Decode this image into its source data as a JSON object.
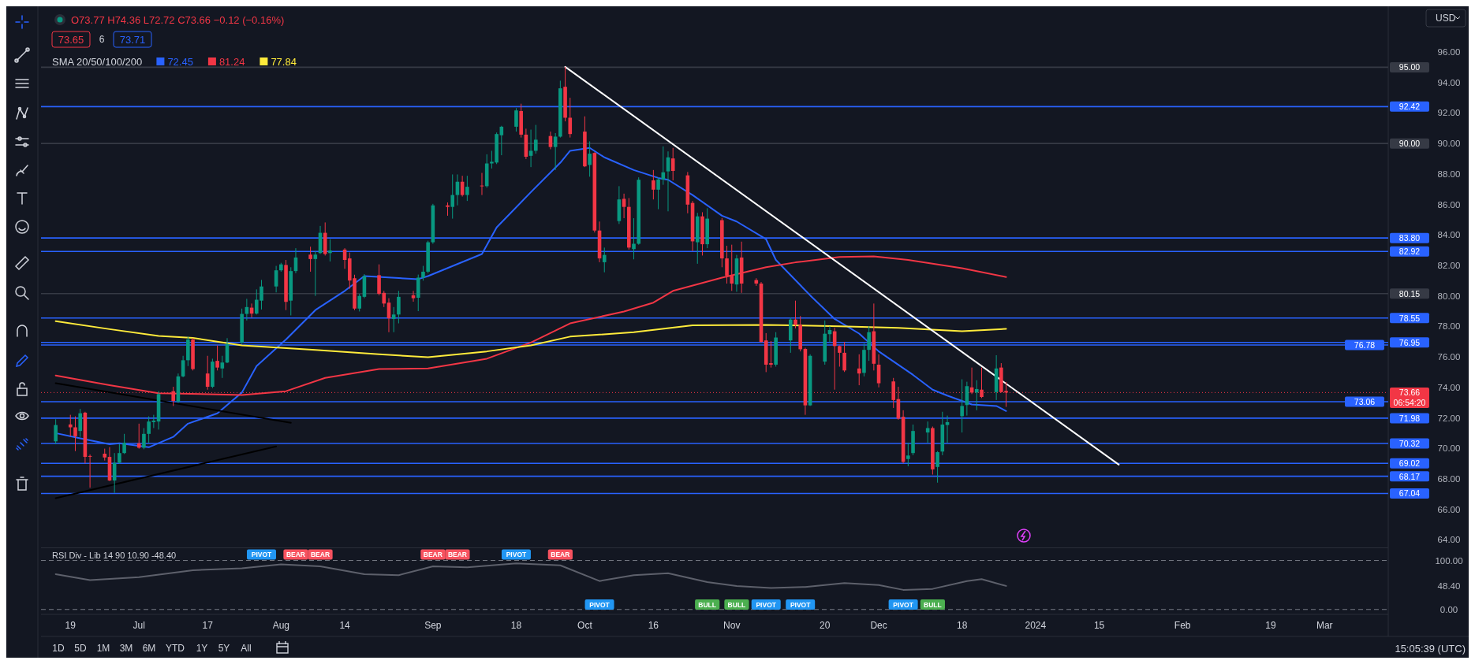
{
  "chart_data": [
    {
      "type": "candlestick",
      "tick_labels": "y",
      "legend": "top left",
      "legend_title": "SMA 20/50/100/200",
      "xlim": [
        "2023-06-13",
        "2024-03-14"
      ],
      "ylim": [
        63.5,
        99
      ],
      "yticks": [
        {
          "value": 64,
          "label": "64.00"
        },
        {
          "value": 66,
          "label": "66.00"
        },
        {
          "value": 68,
          "label": "68.00"
        },
        {
          "value": 70,
          "label": "70.00"
        },
        {
          "value": 72,
          "label": "72.00"
        },
        {
          "value": 74,
          "label": "74.00"
        },
        {
          "value": 76,
          "label": "76.00"
        },
        {
          "value": 78,
          "label": "78.00"
        },
        {
          "value": 80,
          "label": "80.00"
        },
        {
          "value": 82,
          "label": "82.00"
        },
        {
          "value": 84,
          "label": "84.00"
        },
        {
          "value": 86,
          "label": "86.00"
        },
        {
          "value": 88,
          "label": "88.00"
        },
        {
          "value": 90,
          "label": "90.00"
        },
        {
          "value": 92,
          "label": "92.00"
        },
        {
          "value": 94,
          "label": "94.00"
        },
        {
          "value": 96,
          "label": "96.00"
        }
      ],
      "x": [
        "2023-06-16",
        "2023-06-19",
        "2023-06-20",
        "2023-06-21",
        "2023-06-22",
        "2023-06-23",
        "2023-06-26",
        "2023-06-27",
        "2023-06-28",
        "2023-06-29",
        "2023-06-30",
        "2023-07-03",
        "2023-07-04",
        "2023-07-05",
        "2023-07-06",
        "2023-07-07",
        "2023-07-10",
        "2023-07-11",
        "2023-07-12",
        "2023-07-13",
        "2023-07-14",
        "2023-07-17",
        "2023-07-18",
        "2023-07-19",
        "2023-07-20",
        "2023-07-21",
        "2023-07-24",
        "2023-07-25",
        "2023-07-26",
        "2023-07-27",
        "2023-07-28",
        "2023-07-31",
        "2023-08-01",
        "2023-08-02",
        "2023-08-03",
        "2023-08-04",
        "2023-08-07",
        "2023-08-08",
        "2023-08-09",
        "2023-08-10",
        "2023-08-11",
        "2023-08-14",
        "2023-08-15",
        "2023-08-16",
        "2023-08-17",
        "2023-08-18",
        "2023-08-21",
        "2023-08-22",
        "2023-08-23",
        "2023-08-24",
        "2023-08-25",
        "2023-08-28",
        "2023-08-29",
        "2023-08-30",
        "2023-08-31",
        "2023-09-01",
        "2023-09-04",
        "2023-09-05",
        "2023-09-06",
        "2023-09-07",
        "2023-09-08",
        "2023-09-11",
        "2023-09-12",
        "2023-09-13",
        "2023-09-14",
        "2023-09-15",
        "2023-09-18",
        "2023-09-19",
        "2023-09-20",
        "2023-09-21",
        "2023-09-22",
        "2023-09-25",
        "2023-09-26",
        "2023-09-27",
        "2023-09-28",
        "2023-09-29",
        "2023-10-02",
        "2023-10-03",
        "2023-10-04",
        "2023-10-05",
        "2023-10-06",
        "2023-10-09",
        "2023-10-10",
        "2023-10-11",
        "2023-10-12",
        "2023-10-13",
        "2023-10-16",
        "2023-10-17",
        "2023-10-18",
        "2023-10-19",
        "2023-10-20",
        "2023-10-23",
        "2023-10-24",
        "2023-10-25",
        "2023-10-26",
        "2023-10-27",
        "2023-10-30",
        "2023-10-31",
        "2023-11-01",
        "2023-11-02",
        "2023-11-03",
        "2023-11-06",
        "2023-11-07",
        "2023-11-08",
        "2023-11-09",
        "2023-11-10",
        "2023-11-13",
        "2023-11-14",
        "2023-11-15",
        "2023-11-16",
        "2023-11-17",
        "2023-11-20",
        "2023-11-21",
        "2023-11-22",
        "2023-11-23",
        "2023-11-24",
        "2023-11-27",
        "2023-11-28",
        "2023-11-29",
        "2023-11-30",
        "2023-12-01",
        "2023-12-04",
        "2023-12-05",
        "2023-12-06",
        "2023-12-07",
        "2023-12-08",
        "2023-12-11",
        "2023-12-12",
        "2023-12-13",
        "2023-12-14",
        "2023-12-15",
        "2023-12-18",
        "2023-12-19",
        "2023-12-20",
        "2023-12-21",
        "2023-12-22",
        "2023-12-25",
        "2023-12-26",
        "2023-12-27"
      ],
      "ohlc": [
        [
          70.46,
          71.91,
          70.27,
          71.53
        ],
        [
          71.57,
          72.2,
          70.79,
          71.38
        ],
        [
          71.38,
          72.1,
          69.82,
          70.79
        ],
        [
          71.14,
          72.59,
          70.75,
          72.3
        ],
        [
          72.34,
          72.4,
          69.01,
          69.44
        ],
        [
          69.5,
          69.6,
          67.42,
          69.48
        ],
        [
          69.65,
          69.98,
          69.2,
          69.4
        ],
        [
          69.44,
          70.08,
          67.85,
          67.89
        ],
        [
          67.89,
          69.69,
          67.08,
          69.05
        ],
        [
          69.05,
          70.27,
          69.0,
          69.69
        ],
        [
          69.69,
          70.95,
          69.63,
          70.37
        ],
        [
          70.33,
          71.62,
          69.98,
          70.04
        ],
        [
          70.04,
          71.33,
          69.94,
          70.95
        ],
        [
          70.95,
          72.1,
          70.37,
          71.76
        ],
        [
          71.72,
          72.2,
          71.33,
          71.82
        ],
        [
          71.76,
          73.75,
          71.23,
          73.56
        ],
        [
          73.75,
          74.04,
          72.78,
          73.11
        ],
        [
          73.07,
          74.91,
          72.98,
          74.72
        ],
        [
          74.72,
          76.07,
          74.66,
          75.78
        ],
        [
          75.78,
          77.33,
          75.4,
          77.14
        ],
        [
          77.14,
          77.23,
          75.11,
          75.2
        ],
        [
          74.91,
          76.07,
          73.85,
          74.04
        ],
        [
          74.04,
          75.88,
          73.95,
          75.69
        ],
        [
          75.74,
          76.75,
          75.11,
          75.3
        ],
        [
          75.24,
          76.07,
          74.62,
          75.63
        ],
        [
          75.63,
          77.23,
          75.59,
          76.85
        ],
        [
          76.94,
          79.17,
          76.85,
          78.82
        ],
        [
          78.82,
          79.81,
          78.39,
          79.27
        ],
        [
          79.23,
          79.5,
          78.59,
          78.84
        ],
        [
          78.84,
          80.43,
          78.78,
          79.75
        ],
        [
          79.69,
          81.05,
          79.11,
          80.62
        ],
        [
          80.62,
          81.97,
          80.23,
          81.68
        ],
        [
          81.68,
          82.17,
          81.59,
          82.07
        ],
        [
          82.03,
          82.36,
          79.07,
          79.61
        ],
        [
          79.69,
          81.88,
          78.72,
          81.63
        ],
        [
          81.63,
          83.13,
          81.49,
          82.52
        ],
        [
          82.71,
          83.23,
          81.59,
          82.42
        ],
        [
          82.42,
          82.94,
          80.0,
          82.71
        ],
        [
          82.81,
          84.59,
          82.75,
          84.14
        ],
        [
          84.14,
          84.82,
          82.65,
          82.75
        ],
        [
          82.81,
          83.72,
          82.26,
          82.98
        ],
        [
          83.04,
          83.13,
          81.78,
          82.36
        ],
        [
          82.46,
          82.85,
          80.47,
          81.01
        ],
        [
          81.16,
          81.39,
          79.07,
          79.17
        ],
        [
          79.17,
          80.14,
          78.98,
          80.0
        ],
        [
          79.94,
          81.43,
          79.85,
          81.3
        ],
        [
          81.36,
          82.07,
          80.04,
          80.14
        ],
        [
          80.2,
          80.33,
          79.27,
          79.5
        ],
        [
          79.56,
          79.85,
          77.62,
          78.53
        ],
        [
          78.49,
          79.27,
          77.62,
          78.78
        ],
        [
          78.78,
          80.33,
          78.2,
          79.94
        ],
        [
          80.04,
          80.33,
          79.62,
          79.85
        ],
        [
          79.88,
          81.4,
          79.0,
          81.2
        ],
        [
          81.2,
          81.97,
          81.0,
          81.59
        ],
        [
          81.59,
          83.62,
          81.49,
          83.52
        ],
        [
          83.52,
          86.04,
          83.42,
          85.94
        ],
        [
          85.94,
          86.13,
          85.26,
          85.84
        ],
        [
          85.84,
          87.97,
          85.07,
          86.62
        ],
        [
          86.62,
          87.97,
          85.94,
          87.49
        ],
        [
          87.49,
          87.88,
          86.52,
          86.62
        ],
        [
          86.62,
          87.88,
          86.23,
          87.16
        ],
        [
          87.24,
          88.07,
          86.62,
          87.2
        ],
        [
          87.2,
          89.29,
          87.1,
          88.69
        ],
        [
          88.69,
          89.52,
          88.36,
          88.8
        ],
        [
          88.75,
          90.72,
          88.65,
          90.62
        ],
        [
          90.54,
          91.16,
          89.23,
          91.1
        ],
        [
          91.1,
          92.32,
          90.78,
          92.17
        ],
        [
          92.13,
          92.61,
          90.39,
          90.58
        ],
        [
          90.58,
          90.97,
          88.98,
          89.13
        ],
        [
          89.19,
          90.91,
          88.45,
          89.52
        ],
        [
          89.52,
          91.22,
          89.33,
          90.25
        ],
        [
          90.49,
          90.78,
          89.62,
          89.77
        ],
        [
          89.77,
          90.68,
          88.26,
          90.45
        ],
        [
          90.45,
          94.12,
          90.39,
          93.62
        ],
        [
          93.72,
          95.03,
          91.45,
          91.69
        ],
        [
          91.69,
          93.0,
          90.39,
          90.62
        ],
        [
          90.78,
          91.78,
          88.45,
          88.5
        ],
        [
          88.59,
          90.14,
          87.82,
          89.33
        ],
        [
          89.38,
          89.42,
          84.16,
          84.29
        ],
        [
          84.29,
          84.88,
          82.21,
          82.46
        ],
        [
          82.21,
          83.17,
          81.55,
          82.69
        ],
        [
          84.91,
          87.2,
          84.72,
          86.33
        ],
        [
          86.37,
          86.71,
          85.1,
          85.84
        ],
        [
          85.84,
          86.42,
          83.04,
          83.17
        ],
        [
          83.07,
          85.1,
          82.4,
          83.42
        ],
        [
          83.42,
          87.78,
          83.36,
          87.62
        ],
        [
          87.58,
          88.26,
          86.33,
          86.97
        ],
        [
          86.97,
          87.78,
          85.69,
          87.64
        ],
        [
          87.64,
          89.81,
          87.29,
          88.11
        ],
        [
          88.17,
          89.48,
          85.55,
          89.09
        ],
        [
          89.02,
          89.71,
          87.58,
          88.2
        ],
        [
          87.91,
          88.13,
          85.42,
          85.99
        ],
        [
          86.1,
          86.23,
          82.94,
          83.58
        ],
        [
          83.52,
          85.45,
          82.11,
          85.22
        ],
        [
          85.22,
          85.49,
          82.65,
          83.39
        ],
        [
          83.39,
          85.75,
          83.13,
          85.07
        ],
        [
          84.97,
          85.11,
          81.88,
          82.46
        ],
        [
          82.46,
          83.29,
          80.81,
          81.33
        ],
        [
          81.33,
          83.36,
          80.33,
          80.81
        ],
        [
          80.75,
          82.69,
          80.27,
          82.46
        ],
        [
          82.52,
          83.56,
          80.2,
          80.81
        ],
        [
          81.04,
          81.16,
          80.66,
          80.81
        ],
        [
          80.81,
          80.91,
          76.94,
          76.98
        ],
        [
          77.08,
          77.56,
          75.0,
          75.49
        ],
        [
          75.59,
          77.04,
          75.3,
          75.49
        ],
        [
          75.49,
          77.62,
          75.36,
          77.27
        ],
        [
          77.08,
          78.59,
          76.27,
          78.45
        ],
        [
          78.45,
          79.69,
          77.87,
          78.1
        ],
        [
          78.1,
          78.68,
          76.36,
          76.5
        ],
        [
          76.52,
          76.6,
          72.2,
          72.82
        ],
        [
          72.82,
          76.17,
          72.78,
          76.07
        ],
        [
          75.69,
          78.39,
          75.49,
          77.52
        ],
        [
          77.49,
          78.01,
          76.94,
          77.76
        ],
        [
          77.68,
          77.91,
          73.85,
          76.71
        ],
        [
          76.71,
          76.75,
          75.36,
          76.27
        ],
        [
          76.27,
          76.98,
          75.01,
          75.11
        ],
        [
          75.24,
          76.17,
          74.14,
          74.91
        ],
        [
          74.95,
          76.88,
          74.72,
          76.46
        ],
        [
          76.46,
          78.01,
          75.74,
          77.62
        ],
        [
          77.68,
          79.5,
          75.11,
          75.55
        ],
        [
          75.49,
          76.17,
          74.0,
          74.27
        ],
        [
          74.39,
          74.62,
          72.65,
          73.17
        ],
        [
          73.23,
          74.04,
          71.88,
          71.95
        ],
        [
          72.07,
          72.5,
          69.01,
          69.11
        ],
        [
          69.3,
          70.37,
          68.82,
          69.53
        ],
        [
          69.69,
          71.56,
          69.55,
          71.14
        ],
        [
          71.04,
          71.76,
          70.37,
          71.33
        ],
        [
          71.33,
          71.43,
          68.28,
          68.62
        ],
        [
          68.78,
          69.82,
          67.75,
          69.75
        ],
        [
          69.79,
          72.4,
          69.55,
          71.56
        ],
        [
          71.53,
          72.15,
          70.37,
          71.72
        ],
        [
          72.11,
          74.53,
          71.04,
          72.78
        ],
        [
          72.84,
          74.37,
          72.15,
          74.08
        ],
        [
          74.0,
          75.3,
          73.56,
          73.66
        ],
        [
          73.66,
          74.47,
          72.5,
          73.89
        ],
        [
          73.85,
          75.3,
          73.3,
          73.37
        ],
        [
          73.69,
          76.11,
          73.17,
          75.24
        ],
        [
          75.3,
          75.59,
          73.66,
          73.69
        ],
        [
          73.77,
          74.36,
          72.72,
          73.66
        ]
      ],
      "series": [
        {
          "name": "72.45",
          "color": "#2962ff",
          "type": "line",
          "x": [
            "2023-06-16",
            "2023-06-21",
            "2023-06-27",
            "2023-06-29",
            "2023-07-05",
            "2023-07-10",
            "2023-07-13",
            "2023-07-19",
            "2023-07-24",
            "2023-07-27",
            "2023-08-02",
            "2023-08-08",
            "2023-08-14",
            "2023-08-18",
            "2023-08-29",
            "2023-08-31",
            "2023-09-11",
            "2023-09-14",
            "2023-09-21",
            "2023-09-27",
            "2023-09-29",
            "2023-10-03",
            "2023-10-06",
            "2023-10-12",
            "2023-10-17",
            "2023-10-19",
            "2023-10-24",
            "2023-10-30",
            "2023-11-02",
            "2023-11-08",
            "2023-11-10",
            "2023-11-17",
            "2023-11-22",
            "2023-11-27",
            "2023-12-01",
            "2023-12-08",
            "2023-12-12",
            "2023-12-15",
            "2023-12-20",
            "2023-12-25",
            "2023-12-27"
          ],
          "values": [
            71.0,
            70.66,
            70.27,
            70.33,
            70.07,
            70.75,
            71.62,
            72.3,
            73.66,
            75.4,
            77.14,
            79.07,
            80.33,
            81.3,
            81.1,
            81.3,
            82.75,
            84.49,
            86.81,
            88.74,
            89.52,
            89.71,
            89.09,
            88.26,
            87.74,
            87.62,
            86.62,
            85.26,
            84.88,
            83.72,
            82.36,
            80.04,
            78.49,
            77.53,
            76.36,
            74.82,
            73.85,
            73.46,
            72.88,
            72.78,
            72.45
          ]
        },
        {
          "name": "81.24",
          "color": "#f23645",
          "type": "line",
          "x": [
            "2023-06-16",
            "2023-06-27",
            "2023-07-07",
            "2023-07-24",
            "2023-08-02",
            "2023-08-10",
            "2023-08-21",
            "2023-08-31",
            "2023-09-12",
            "2023-09-21",
            "2023-09-29",
            "2023-10-10",
            "2023-10-16",
            "2023-10-20",
            "2023-10-30",
            "2023-11-08",
            "2023-11-14",
            "2023-11-23",
            "2023-11-30",
            "2023-12-07",
            "2023-12-18",
            "2023-12-27"
          ],
          "values": [
            74.78,
            74.14,
            73.62,
            73.5,
            73.75,
            74.62,
            75.2,
            75.24,
            75.88,
            76.94,
            78.2,
            78.98,
            79.56,
            80.33,
            81.2,
            81.88,
            82.2,
            82.55,
            82.59,
            82.36,
            81.82,
            81.24
          ]
        },
        {
          "name": "77.84",
          "color": "#ffeb3b",
          "type": "line",
          "x": [
            "2023-06-16",
            "2023-06-27",
            "2023-07-07",
            "2023-07-14",
            "2023-07-24",
            "2023-08-08",
            "2023-08-21",
            "2023-08-31",
            "2023-09-12",
            "2023-09-21",
            "2023-09-29",
            "2023-10-12",
            "2023-10-24",
            "2023-11-08",
            "2023-11-23",
            "2023-12-05",
            "2023-12-18",
            "2023-12-27"
          ],
          "values": [
            78.34,
            77.82,
            77.37,
            77.24,
            76.75,
            76.46,
            76.17,
            75.98,
            76.36,
            76.75,
            77.33,
            77.62,
            78.07,
            78.1,
            78.01,
            77.91,
            77.68,
            77.84
          ]
        },
        {
          "color": "#ffffff",
          "type": "line",
          "x": [
            "2023-09-28",
            "2024-01-19"
          ],
          "values": [
            95.03,
            68.93
          ]
        },
        {
          "color": "#000000",
          "type": "line",
          "x": [
            "2023-06-16",
            "2023-08-03"
          ],
          "values": [
            74.27,
            71.68
          ]
        },
        {
          "color": "#000000",
          "type": "line",
          "x": [
            "2023-06-16",
            "2023-07-31"
          ],
          "values": [
            66.73,
            70.13
          ]
        }
      ],
      "ref_lines": [
        {
          "axis": "y",
          "value": 95,
          "label": "95.00",
          "color": "#363a45"
        },
        {
          "axis": "y",
          "value": 92.42,
          "label": "92.42",
          "color": "#2962ff"
        },
        {
          "axis": "y",
          "value": 90,
          "label": "90.00",
          "color": "#363a45"
        },
        {
          "axis": "y",
          "value": 83.8,
          "label": "83.80",
          "color": "#2962ff"
        },
        {
          "axis": "y",
          "value": 82.92,
          "label": "82.92",
          "color": "#2962ff"
        },
        {
          "axis": "y",
          "value": 80.15,
          "label": "80.15",
          "color": "#363a45"
        },
        {
          "axis": "y",
          "value": 78.55,
          "label": "78.55",
          "color": "#2962ff"
        },
        {
          "axis": "y",
          "value": 76.95,
          "label": "76.95",
          "color": "#2962ff"
        },
        {
          "axis": "y",
          "value": 76.78,
          "label": "76.78",
          "color": "#2962ff"
        },
        {
          "axis": "y",
          "value": 73.66,
          "label": "73.66",
          "color": "#f23645",
          "line_style": "dotted"
        },
        {
          "axis": "y",
          "value": 73.06,
          "label": "73.06",
          "color": "#2962ff"
        },
        {
          "axis": "y",
          "value": 71.98,
          "label": "71.98",
          "color": "#2962ff"
        },
        {
          "axis": "y",
          "value": 70.32,
          "label": "70.32",
          "color": "#2962ff"
        },
        {
          "axis": "y",
          "value": 69.02,
          "label": "69.02",
          "color": "#2962ff"
        },
        {
          "axis": "y",
          "value": 68.17,
          "label": "68.17",
          "color": "#2962ff"
        },
        {
          "axis": "y",
          "value": 67.04,
          "label": "67.04",
          "color": "#2962ff"
        }
      ],
      "annotations": [
        "O73.77 H74.36 L72.72 C73.66 −0.12 (−0.16%)",
        "73.65",
        "6",
        "73.71",
        "06:54:20",
        "USD",
        "1D",
        "5D",
        "1M",
        "3M",
        "6M",
        "YTD",
        "1Y",
        "5Y",
        "All",
        "15:05:39 (UTC)"
      ]
    },
    {
      "type": "line",
      "title": "RSI Div - Lib 14 90 10.90 -48.40",
      "xlim": [
        "2023-06-13",
        "2024-03-14"
      ],
      "ylim": [
        -10,
        125
      ],
      "xticks": [
        {
          "value": "2023-06-19",
          "label": "19"
        },
        {
          "value": "2023-07-03",
          "label": "Jul"
        },
        {
          "value": "2023-07-17",
          "label": "17"
        },
        {
          "value": "2023-08-01",
          "label": "Aug"
        },
        {
          "value": "2023-08-14",
          "label": "14"
        },
        {
          "value": "2023-09-01",
          "label": "Sep"
        },
        {
          "value": "2023-09-18",
          "label": "18"
        },
        {
          "value": "2023-10-02",
          "label": "Oct"
        },
        {
          "value": "2023-10-16",
          "label": "16"
        },
        {
          "value": "2023-11-01",
          "label": "Nov"
        },
        {
          "value": "2023-11-20",
          "label": "20"
        },
        {
          "value": "2023-12-01",
          "label": "Dec"
        },
        {
          "value": "2023-12-18",
          "label": "18"
        },
        {
          "value": "2024-01-02",
          "label": "2024"
        },
        {
          "value": "2024-01-15",
          "label": "15"
        },
        {
          "value": "2024-02-01",
          "label": "Feb"
        },
        {
          "value": "2024-02-19",
          "label": "19"
        },
        {
          "value": "2024-03-01",
          "label": "Mar"
        }
      ],
      "yticks": [
        {
          "value": 0,
          "label": "0.00"
        },
        {
          "value": 48.4,
          "label": "48.40"
        },
        {
          "value": 100,
          "label": "100.00"
        }
      ],
      "ref_lines": [
        {
          "axis": "y",
          "value": 100,
          "color": "#787b86",
          "line_style": "dashed"
        },
        {
          "axis": "y",
          "value": 0,
          "color": "#787b86",
          "line_style": "dashed"
        }
      ],
      "series": [
        {
          "color": "#5d606b",
          "x": [
            "2023-06-16",
            "2023-06-23",
            "2023-07-03",
            "2023-07-14",
            "2023-07-24",
            "2023-08-01",
            "2023-08-09",
            "2023-08-18",
            "2023-08-25",
            "2023-09-01",
            "2023-09-08",
            "2023-09-18",
            "2023-09-27",
            "2023-10-05",
            "2023-10-12",
            "2023-10-19",
            "2023-10-27",
            "2023-11-02",
            "2023-11-09",
            "2023-11-16",
            "2023-11-24",
            "2023-12-01",
            "2023-12-06",
            "2023-12-12",
            "2023-12-19",
            "2023-12-22",
            "2023-12-27"
          ],
          "values": [
            72,
            60,
            66,
            80,
            84,
            92,
            88,
            72,
            70,
            88,
            86,
            94,
            90,
            58,
            70,
            74,
            56,
            48,
            44,
            46,
            54,
            50,
            40,
            42,
            58,
            62,
            48
          ]
        },
        {
          "name": "PIVOT",
          "color": "#2196f3",
          "type": "scatter",
          "x": [
            "2023-07-28",
            "2023-09-18",
            "2023-10-05",
            "2023-11-08",
            "2023-11-15",
            "2023-12-06"
          ],
          "values": [
            112,
            112,
            10,
            10,
            10,
            10
          ]
        },
        {
          "name": "BEAR",
          "color": "#f7525f",
          "type": "scatter",
          "x": [
            "2023-08-04",
            "2023-08-09",
            "2023-09-01",
            "2023-09-06",
            "2023-09-27"
          ],
          "values": [
            112,
            112,
            112,
            112,
            112
          ]
        },
        {
          "name": "BULL",
          "color": "#4caf50",
          "type": "scatter",
          "x": [
            "2023-10-27",
            "2023-11-02",
            "2023-12-12"
          ],
          "values": [
            10,
            10,
            10
          ]
        }
      ]
    }
  ]
}
